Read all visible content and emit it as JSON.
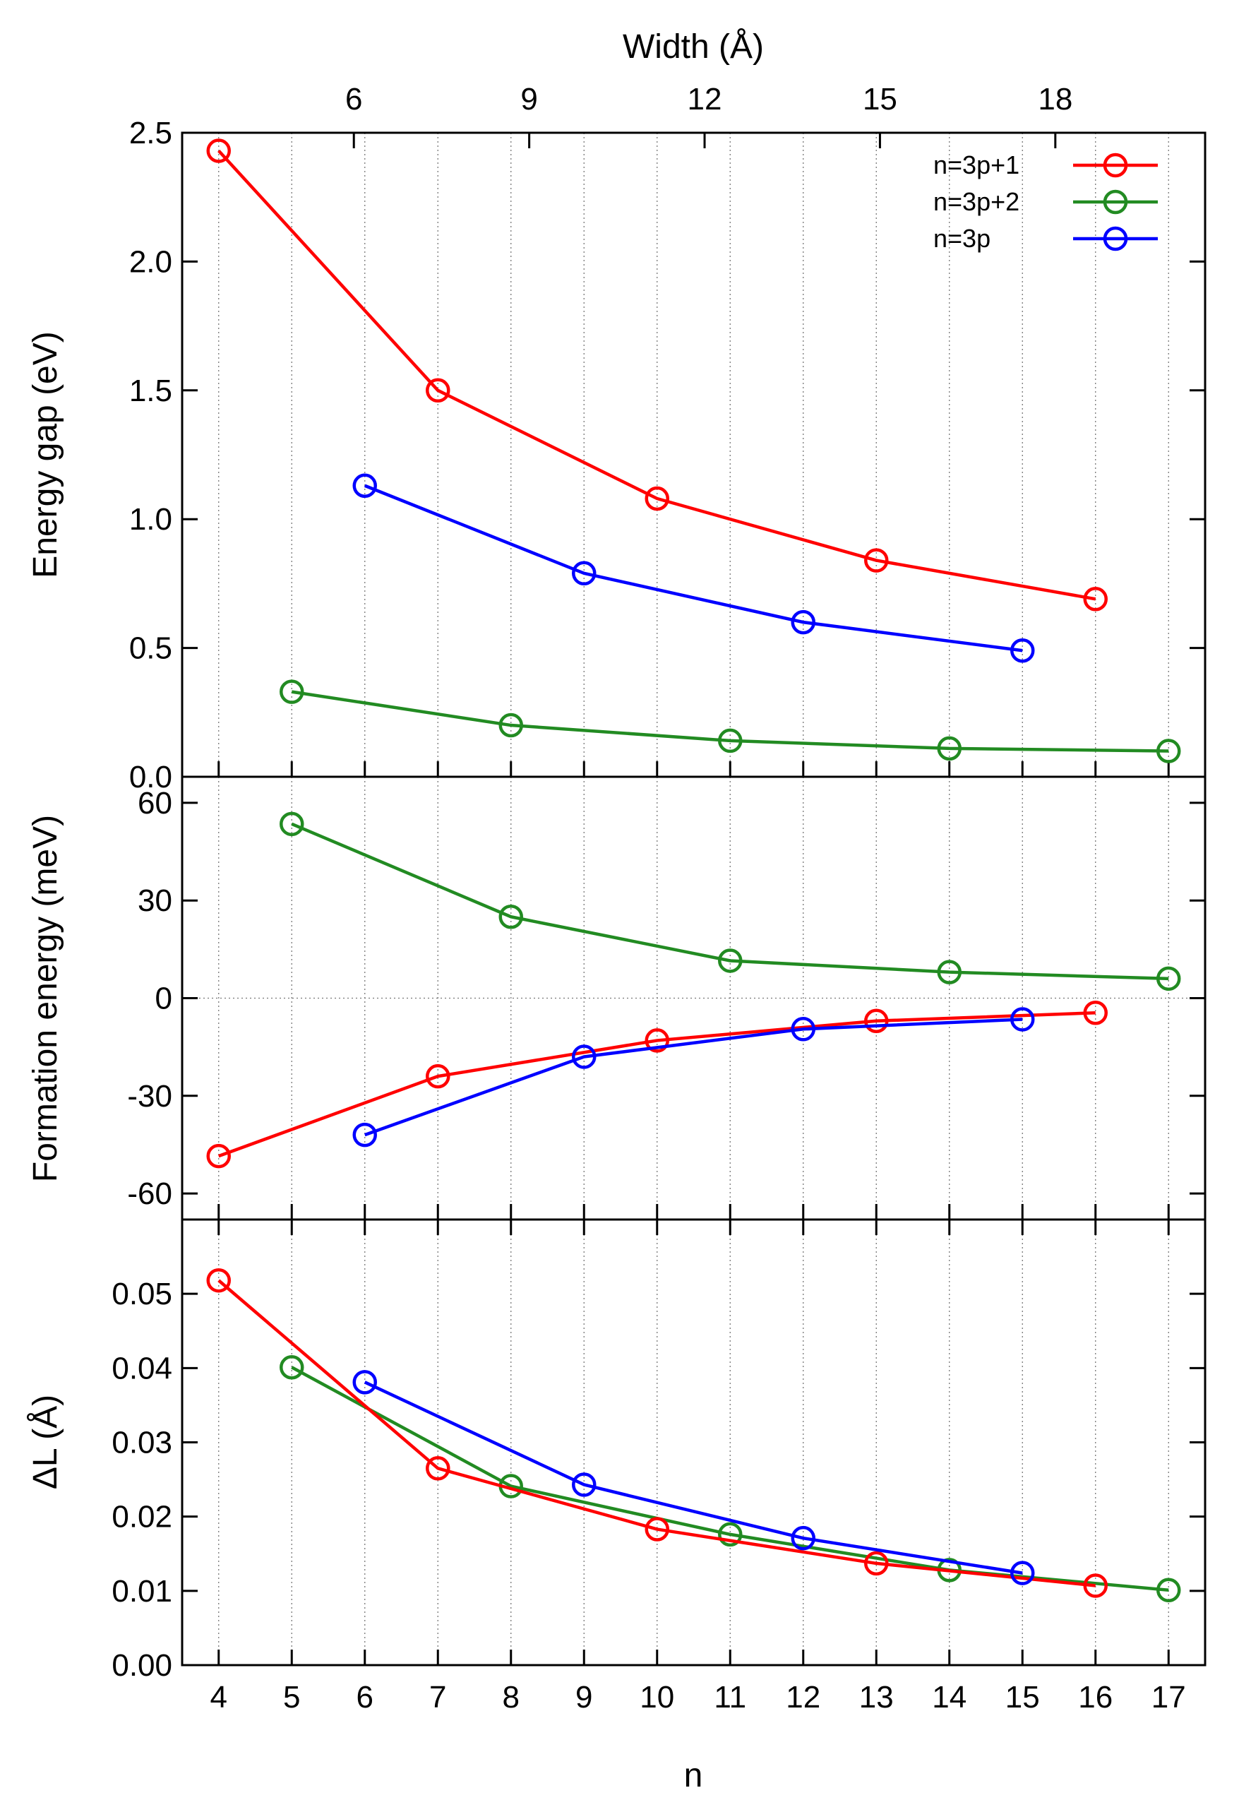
{
  "chart_data": [
    {
      "type": "line",
      "xlabel": "n",
      "x2label": "Width (Å)",
      "x": [
        4,
        5,
        6,
        7,
        8,
        9,
        10,
        11,
        12,
        13,
        14,
        15,
        16,
        17
      ],
      "xlim": [
        3.5,
        17.5
      ],
      "x2_ticks": [
        {
          "label": "6",
          "n": 5.85
        },
        {
          "label": "9",
          "n": 8.25
        },
        {
          "label": "12",
          "n": 10.65
        },
        {
          "label": "15",
          "n": 13.05
        },
        {
          "label": "18",
          "n": 15.45
        }
      ],
      "legend": {
        "position": "top-right"
      },
      "colors": {
        "n=3p+1": "#ff0000",
        "n=3p+2": "#228b22",
        "n=3p": "#0000ff"
      },
      "panels": [
        {
          "id": "gap",
          "ylabel": "Energy gap (eV)",
          "ylim": [
            0,
            2.5
          ],
          "yticks": [
            "0.0",
            "0.5",
            "1.0",
            "1.5",
            "2.0",
            "2.5"
          ],
          "series": [
            {
              "name": "n=3p+1",
              "x": [
                4,
                7,
                10,
                13,
                16
              ],
              "values": [
                2.43,
                1.5,
                1.08,
                0.84,
                0.69
              ]
            },
            {
              "name": "n=3p+2",
              "x": [
                5,
                8,
                11,
                14,
                17
              ],
              "values": [
                0.33,
                0.2,
                0.14,
                0.11,
                0.1
              ]
            },
            {
              "name": "n=3p",
              "x": [
                6,
                9,
                12,
                15
              ],
              "values": [
                1.13,
                0.79,
                0.6,
                0.49
              ]
            }
          ]
        },
        {
          "id": "formation",
          "ylabel": "Formation energy (meV)",
          "ylim": [
            -68,
            68
          ],
          "yticks": [
            "-60",
            "-30",
            "0",
            "30",
            "60"
          ],
          "zero_line": true,
          "series": [
            {
              "name": "n=3p+1",
              "x": [
                4,
                7,
                10,
                13,
                16
              ],
              "values": [
                -48.5,
                -24,
                -13,
                -7,
                -4.5
              ]
            },
            {
              "name": "n=3p+2",
              "x": [
                5,
                8,
                11,
                14,
                17
              ],
              "values": [
                53.5,
                25,
                11.5,
                8,
                6
              ]
            },
            {
              "name": "n=3p",
              "x": [
                6,
                9,
                12,
                15
              ],
              "values": [
                -42,
                -18,
                -9.5,
                -6.5
              ]
            }
          ]
        },
        {
          "id": "deltaL",
          "ylabel": "ΔL (Å)",
          "ylim": [
            0,
            0.06
          ],
          "yticks": [
            "0.00",
            "0.01",
            "0.02",
            "0.03",
            "0.04",
            "0.05"
          ],
          "series": [
            {
              "name": "n=3p+1",
              "x": [
                4,
                7,
                10,
                13,
                16
              ],
              "values": [
                0.0518,
                0.0265,
                0.0183,
                0.0137,
                0.0107
              ]
            },
            {
              "name": "n=3p+2",
              "x": [
                5,
                8,
                11,
                14,
                17
              ],
              "values": [
                0.0401,
                0.0241,
                0.0176,
                0.0128,
                0.0101
              ]
            },
            {
              "name": "n=3p",
              "x": [
                6,
                9,
                12,
                15
              ],
              "values": [
                0.0381,
                0.0243,
                0.0171,
                0.0124
              ]
            }
          ]
        }
      ]
    }
  ]
}
